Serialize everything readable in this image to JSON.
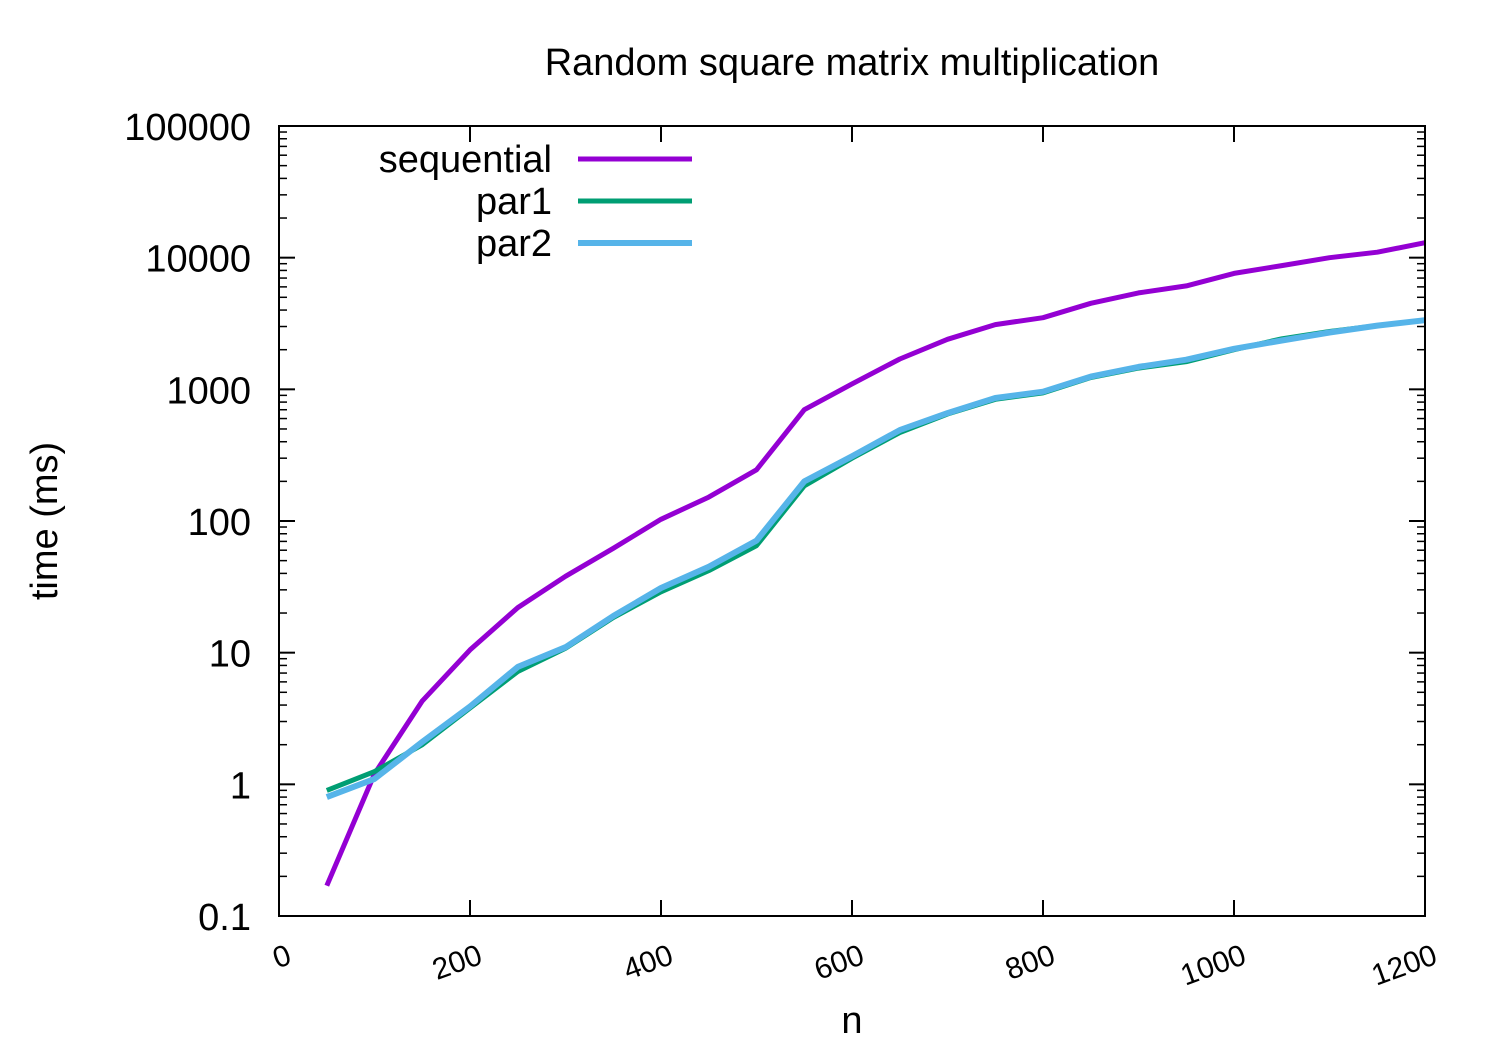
{
  "chart_data": {
    "type": "line",
    "title": "Random square matrix multiplication",
    "xlabel": "n",
    "ylabel": "time (ms)",
    "xlim": [
      0,
      1200
    ],
    "ylim": [
      0.1,
      100000
    ],
    "yscale": "log",
    "grid": false,
    "legend_position": "top-left",
    "x_ticks": [
      "0",
      "200",
      "400",
      "600",
      "800",
      "1000",
      "1200"
    ],
    "y_ticks": [
      "0.1",
      "1",
      "10",
      "100",
      "1000",
      "10000",
      "100000"
    ],
    "x": [
      50,
      100,
      150,
      200,
      250,
      300,
      350,
      400,
      450,
      500,
      550,
      600,
      650,
      700,
      750,
      800,
      850,
      900,
      950,
      1000,
      1050,
      1100,
      1150,
      1200
    ],
    "series": [
      {
        "name": "sequential",
        "color": "#9400d3",
        "values": [
          0.17,
          1.2,
          4.3,
          10.5,
          22,
          38,
          62,
          103,
          152,
          245,
          700,
          1100,
          1700,
          2400,
          3100,
          3500,
          4500,
          5400,
          6100,
          7600,
          8700,
          10000,
          11000,
          13000
        ]
      },
      {
        "name": "par1",
        "color": "#009e73",
        "values": [
          0.9,
          1.25,
          2.0,
          3.8,
          7.2,
          10.8,
          18.5,
          29,
          42,
          65,
          185,
          300,
          470,
          650,
          840,
          940,
          1230,
          1450,
          1620,
          2000,
          2420,
          2750,
          3050,
          3350
        ]
      },
      {
        "name": "par2",
        "color": "#56b4e9",
        "values": [
          0.8,
          1.1,
          2.1,
          3.9,
          7.8,
          11,
          19,
          31,
          45,
          71,
          200,
          310,
          490,
          660,
          860,
          960,
          1250,
          1480,
          1680,
          2030,
          2350,
          2700,
          3050,
          3350
        ]
      }
    ]
  }
}
